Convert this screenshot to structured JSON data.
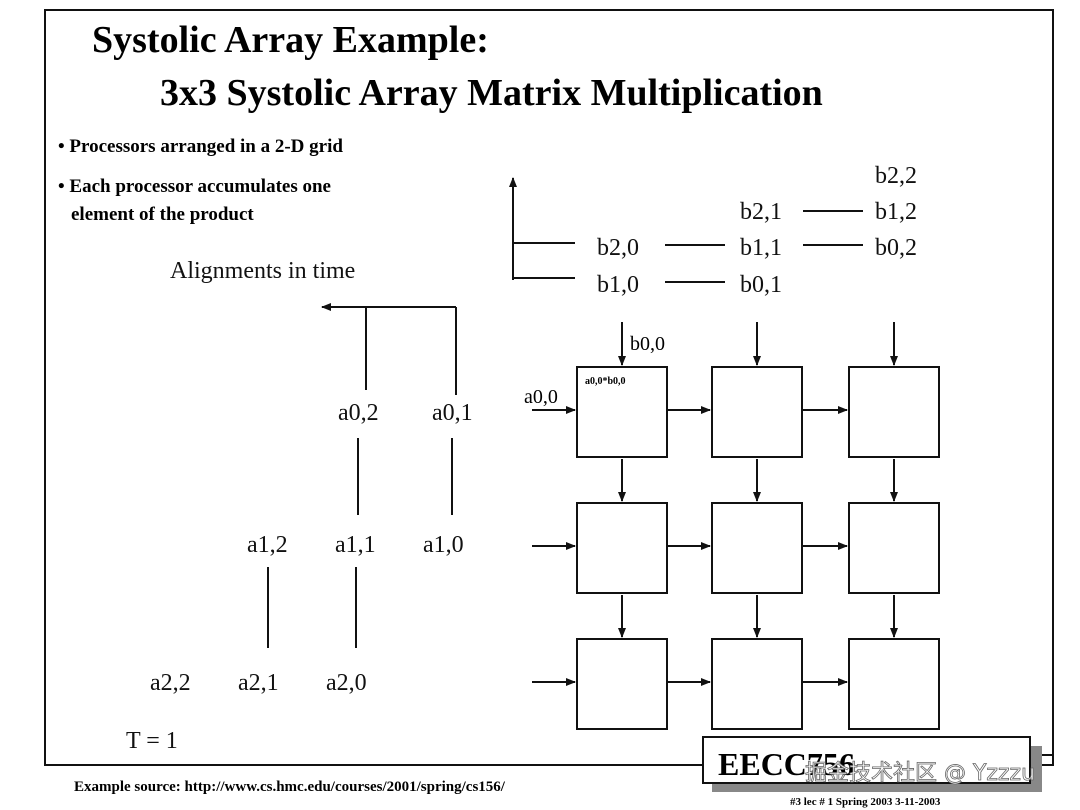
{
  "slide": {
    "title_line1": "Systolic Array  Example:",
    "title_line2": "3x3 Systolic Array Matrix Multiplication",
    "bullets": [
      "• Processors arranged in a 2-D grid",
      "• Each processor accumulates one",
      "element of the product"
    ],
    "alignment_label": "Alignments in time",
    "time_label": "T = 1",
    "source": "Example source:  http://www.cs.hmc.edu/courses/2001/spring/cs156/",
    "footer_title": "EECC756",
    "footer_sub": "#3   lec # 1    Spring 2003   3-11-2003",
    "watermark": "掘金技术社区 @ Yzzzu"
  },
  "a_inputs": {
    "row0": [
      "a0,2",
      "a0,1"
    ],
    "row1": [
      "a1,2",
      "a1,1",
      "a1,0"
    ],
    "row2": [
      "a2,2",
      "a2,1",
      "a2,0"
    ],
    "current": "a0,0"
  },
  "b_inputs": {
    "row0": [
      "b2,2"
    ],
    "row1": [
      "b2,1",
      "b1,2"
    ],
    "row2": [
      "b2,0",
      "b1,1",
      "b0,2"
    ],
    "row3": [
      "b1,0",
      "b0,1"
    ],
    "current": "b0,0"
  },
  "grid": {
    "cell_00_label": "a0,0*b0,0"
  }
}
